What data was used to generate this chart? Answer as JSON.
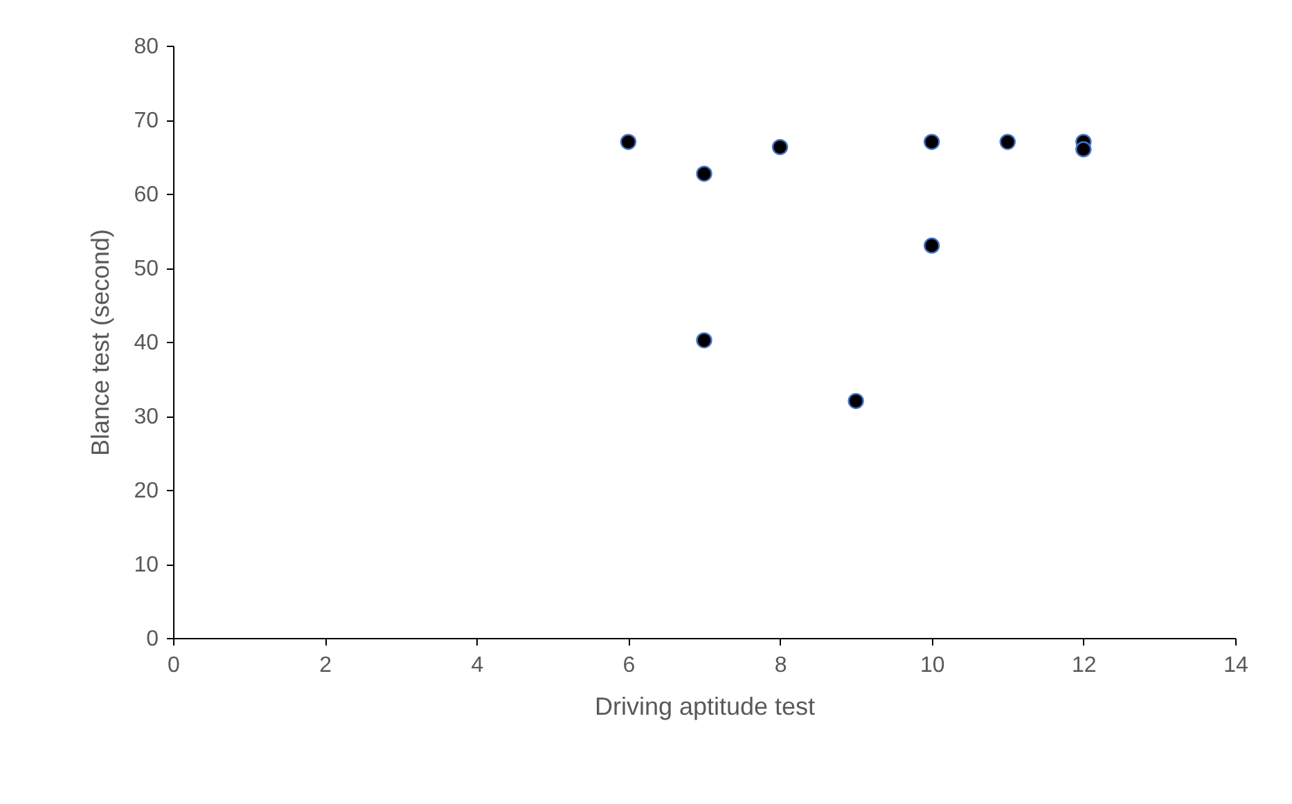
{
  "chart_data": {
    "type": "scatter",
    "xlabel": "Driving aptitude test",
    "ylabel": "Blance test (second)",
    "x": [
      6,
      7,
      7,
      8,
      9,
      10,
      10,
      11,
      12,
      12
    ],
    "series": [
      {
        "color": "#000000",
        "values": [
          67,
          62.7,
          40.2,
          66.3,
          32,
          67,
          53,
          67,
          67,
          66
        ]
      }
    ],
    "xlim": [
      0,
      14
    ],
    "xticks": [
      0,
      2,
      4,
      6,
      8,
      10,
      12,
      14
    ],
    "ylim": [
      0,
      80
    ],
    "yticks": [
      0,
      10,
      20,
      30,
      40,
      50,
      60,
      70,
      80
    ],
    "grid": false,
    "marker": "circle"
  }
}
